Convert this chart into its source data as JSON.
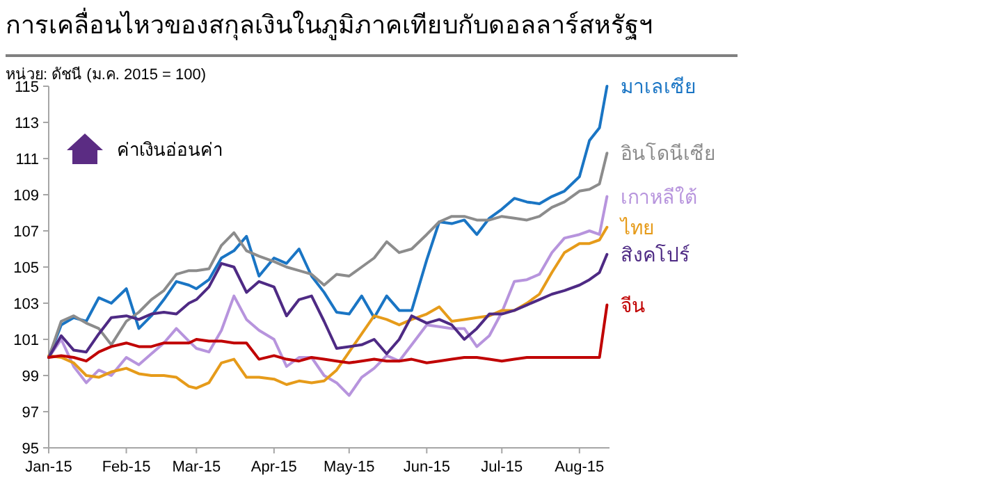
{
  "chart_data": {
    "type": "line",
    "title": "การเคลื่อนไหวของสกุลเงินในภูมิภาคเทียบกับดอลลาร์สหรัฐฯ",
    "subtitle": "หน่วย: ดัชนี (ม.ค. 2015 = 100)",
    "annotations": [
      "ค่าเงินอ่อนค่า"
    ],
    "x": [
      "2015-01-01",
      "2015-01-06",
      "2015-01-11",
      "2015-01-16",
      "2015-01-21",
      "2015-01-26",
      "2015-02-01",
      "2015-02-06",
      "2015-02-11",
      "2015-02-16",
      "2015-02-21",
      "2015-02-26",
      "2015-03-01",
      "2015-03-06",
      "2015-03-11",
      "2015-03-16",
      "2015-03-21",
      "2015-03-26",
      "2015-04-01",
      "2015-04-06",
      "2015-04-11",
      "2015-04-16",
      "2015-04-21",
      "2015-04-26",
      "2015-05-01",
      "2015-05-06",
      "2015-05-11",
      "2015-05-16",
      "2015-05-21",
      "2015-05-26",
      "2015-06-01",
      "2015-06-06",
      "2015-06-11",
      "2015-06-16",
      "2015-06-21",
      "2015-06-26",
      "2015-07-01",
      "2015-07-06",
      "2015-07-11",
      "2015-07-16",
      "2015-07-21",
      "2015-07-26",
      "2015-08-01",
      "2015-08-05",
      "2015-08-09",
      "2015-08-12"
    ],
    "xlim": [
      "2015-01-01",
      "2015-08-13"
    ],
    "xticks": [
      {
        "value": "2015-01-01",
        "label": "Jan-15"
      },
      {
        "value": "2015-02-01",
        "label": "Feb-15"
      },
      {
        "value": "2015-03-01",
        "label": "Mar-15"
      },
      {
        "value": "2015-04-01",
        "label": "Apr-15"
      },
      {
        "value": "2015-05-01",
        "label": "May-15"
      },
      {
        "value": "2015-06-01",
        "label": "Jun-15"
      },
      {
        "value": "2015-07-01",
        "label": "Jul-15"
      },
      {
        "value": "2015-08-01",
        "label": "Aug-15"
      }
    ],
    "ylim": [
      95,
      115
    ],
    "yticks": [
      95,
      97,
      99,
      101,
      103,
      105,
      107,
      109,
      111,
      113,
      115
    ],
    "series": [
      {
        "name": "มาเลเซีย",
        "color": "#1a75c4",
        "values": [
          100,
          101.8,
          102.2,
          102.0,
          103.3,
          103.0,
          103.8,
          101.6,
          102.3,
          103.2,
          104.2,
          104.0,
          103.8,
          104.3,
          105.5,
          105.9,
          106.7,
          104.5,
          105.5,
          105.2,
          106.0,
          104.5,
          103.6,
          102.5,
          102.4,
          103.4,
          102.2,
          103.4,
          102.6,
          102.6,
          105.4,
          107.5,
          107.4,
          107.6,
          106.8,
          107.7,
          108.2,
          108.8,
          108.6,
          108.5,
          108.9,
          109.2,
          110.0,
          112.0,
          112.7,
          115.0
        ]
      },
      {
        "name": "อินโดนีเซีย",
        "color": "#8c8c8c",
        "values": [
          100,
          102.0,
          102.3,
          101.9,
          101.6,
          100.7,
          102.0,
          102.5,
          103.2,
          103.7,
          104.6,
          104.8,
          104.8,
          104.9,
          106.2,
          106.9,
          105.9,
          105.6,
          105.3,
          105.0,
          104.8,
          104.6,
          104.0,
          104.6,
          104.5,
          105.0,
          105.5,
          106.4,
          105.8,
          106.0,
          106.8,
          107.5,
          107.8,
          107.8,
          107.6,
          107.6,
          107.8,
          107.7,
          107.6,
          107.8,
          108.3,
          108.6,
          109.2,
          109.3,
          109.6,
          111.3
        ]
      },
      {
        "name": "เกาหลีใต้",
        "color": "#b794dd",
        "values": [
          100,
          101.0,
          99.5,
          98.6,
          99.3,
          99.0,
          100.0,
          99.6,
          100.2,
          100.8,
          101.6,
          100.9,
          100.5,
          100.3,
          101.5,
          103.4,
          102.1,
          101.5,
          101.0,
          99.5,
          100.0,
          100.0,
          99.0,
          98.6,
          97.9,
          98.9,
          99.4,
          100.1,
          99.8,
          100.7,
          101.8,
          101.7,
          101.6,
          101.6,
          100.6,
          101.2,
          102.5,
          104.2,
          104.3,
          104.6,
          105.8,
          106.6,
          106.8,
          107.0,
          106.8,
          108.9
        ]
      },
      {
        "name": "ไทย",
        "color": "#e69b1a",
        "values": [
          100.1,
          100.0,
          99.7,
          99.0,
          98.9,
          99.2,
          99.4,
          99.1,
          99.0,
          99.0,
          98.9,
          98.4,
          98.3,
          98.6,
          99.7,
          99.9,
          98.9,
          98.9,
          98.8,
          98.5,
          98.7,
          98.6,
          98.7,
          99.3,
          100.3,
          101.3,
          102.3,
          102.1,
          101.8,
          102.1,
          102.4,
          102.8,
          102.0,
          102.1,
          102.2,
          102.3,
          102.6,
          102.6,
          103.0,
          103.5,
          104.7,
          105.8,
          106.3,
          106.3,
          106.5,
          107.2
        ]
      },
      {
        "name": "สิงคโปร์",
        "color": "#4e2a84",
        "values": [
          100,
          101.2,
          100.4,
          100.3,
          101.3,
          102.2,
          102.3,
          102.1,
          102.4,
          102.5,
          102.4,
          103.0,
          103.2,
          103.9,
          105.2,
          105.0,
          103.6,
          104.2,
          103.9,
          102.3,
          103.2,
          103.4,
          102.0,
          100.5,
          100.6,
          100.7,
          101.0,
          100.2,
          101.0,
          102.3,
          101.9,
          102.1,
          101.8,
          101.0,
          101.6,
          102.4,
          102.4,
          102.6,
          102.9,
          103.2,
          103.5,
          103.7,
          104.0,
          104.3,
          104.7,
          105.7
        ]
      },
      {
        "name": "จีน",
        "color": "#c00000",
        "values": [
          100,
          100.1,
          100.0,
          99.8,
          100.3,
          100.6,
          100.8,
          100.6,
          100.6,
          100.8,
          100.8,
          100.8,
          101.0,
          100.9,
          100.9,
          100.8,
          100.8,
          99.9,
          100.1,
          99.9,
          99.8,
          100.0,
          99.9,
          99.8,
          99.7,
          99.8,
          99.9,
          99.8,
          99.8,
          99.9,
          99.7,
          99.8,
          99.9,
          100.0,
          100.0,
          99.9,
          99.8,
          99.9,
          100.0,
          100.0,
          100.0,
          100.0,
          100.0,
          100.0,
          100.0,
          102.9
        ]
      }
    ]
  }
}
